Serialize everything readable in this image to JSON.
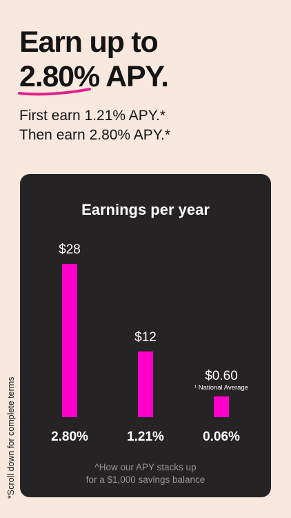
{
  "headline": {
    "line1": "Earn up to",
    "rate": "2.80%",
    "suffix": "APY."
  },
  "subhead": {
    "line1": "First earn 1.21% APY.*",
    "line2": "Then earn 2.80% APY.*"
  },
  "side_note": "*Scroll down for complete terms",
  "colors": {
    "background": "#f8e8de",
    "card": "#262324",
    "bar": "#ff00cc",
    "underline": "#e0218a"
  },
  "chart_data": {
    "type": "bar",
    "title": "Earnings per year",
    "categories": [
      "2.80%",
      "1.21%",
      "0.06%"
    ],
    "values": [
      28,
      12,
      0.6
    ],
    "value_labels": [
      "$28",
      "$12",
      "$0.60"
    ],
    "annotations": [
      "",
      "",
      "¹ National Average"
    ],
    "ylim": [
      0,
      28
    ],
    "grid": false,
    "footnote_line1": "^How our APY stacks up",
    "footnote_line2": "for a $1,000 savings balance"
  }
}
